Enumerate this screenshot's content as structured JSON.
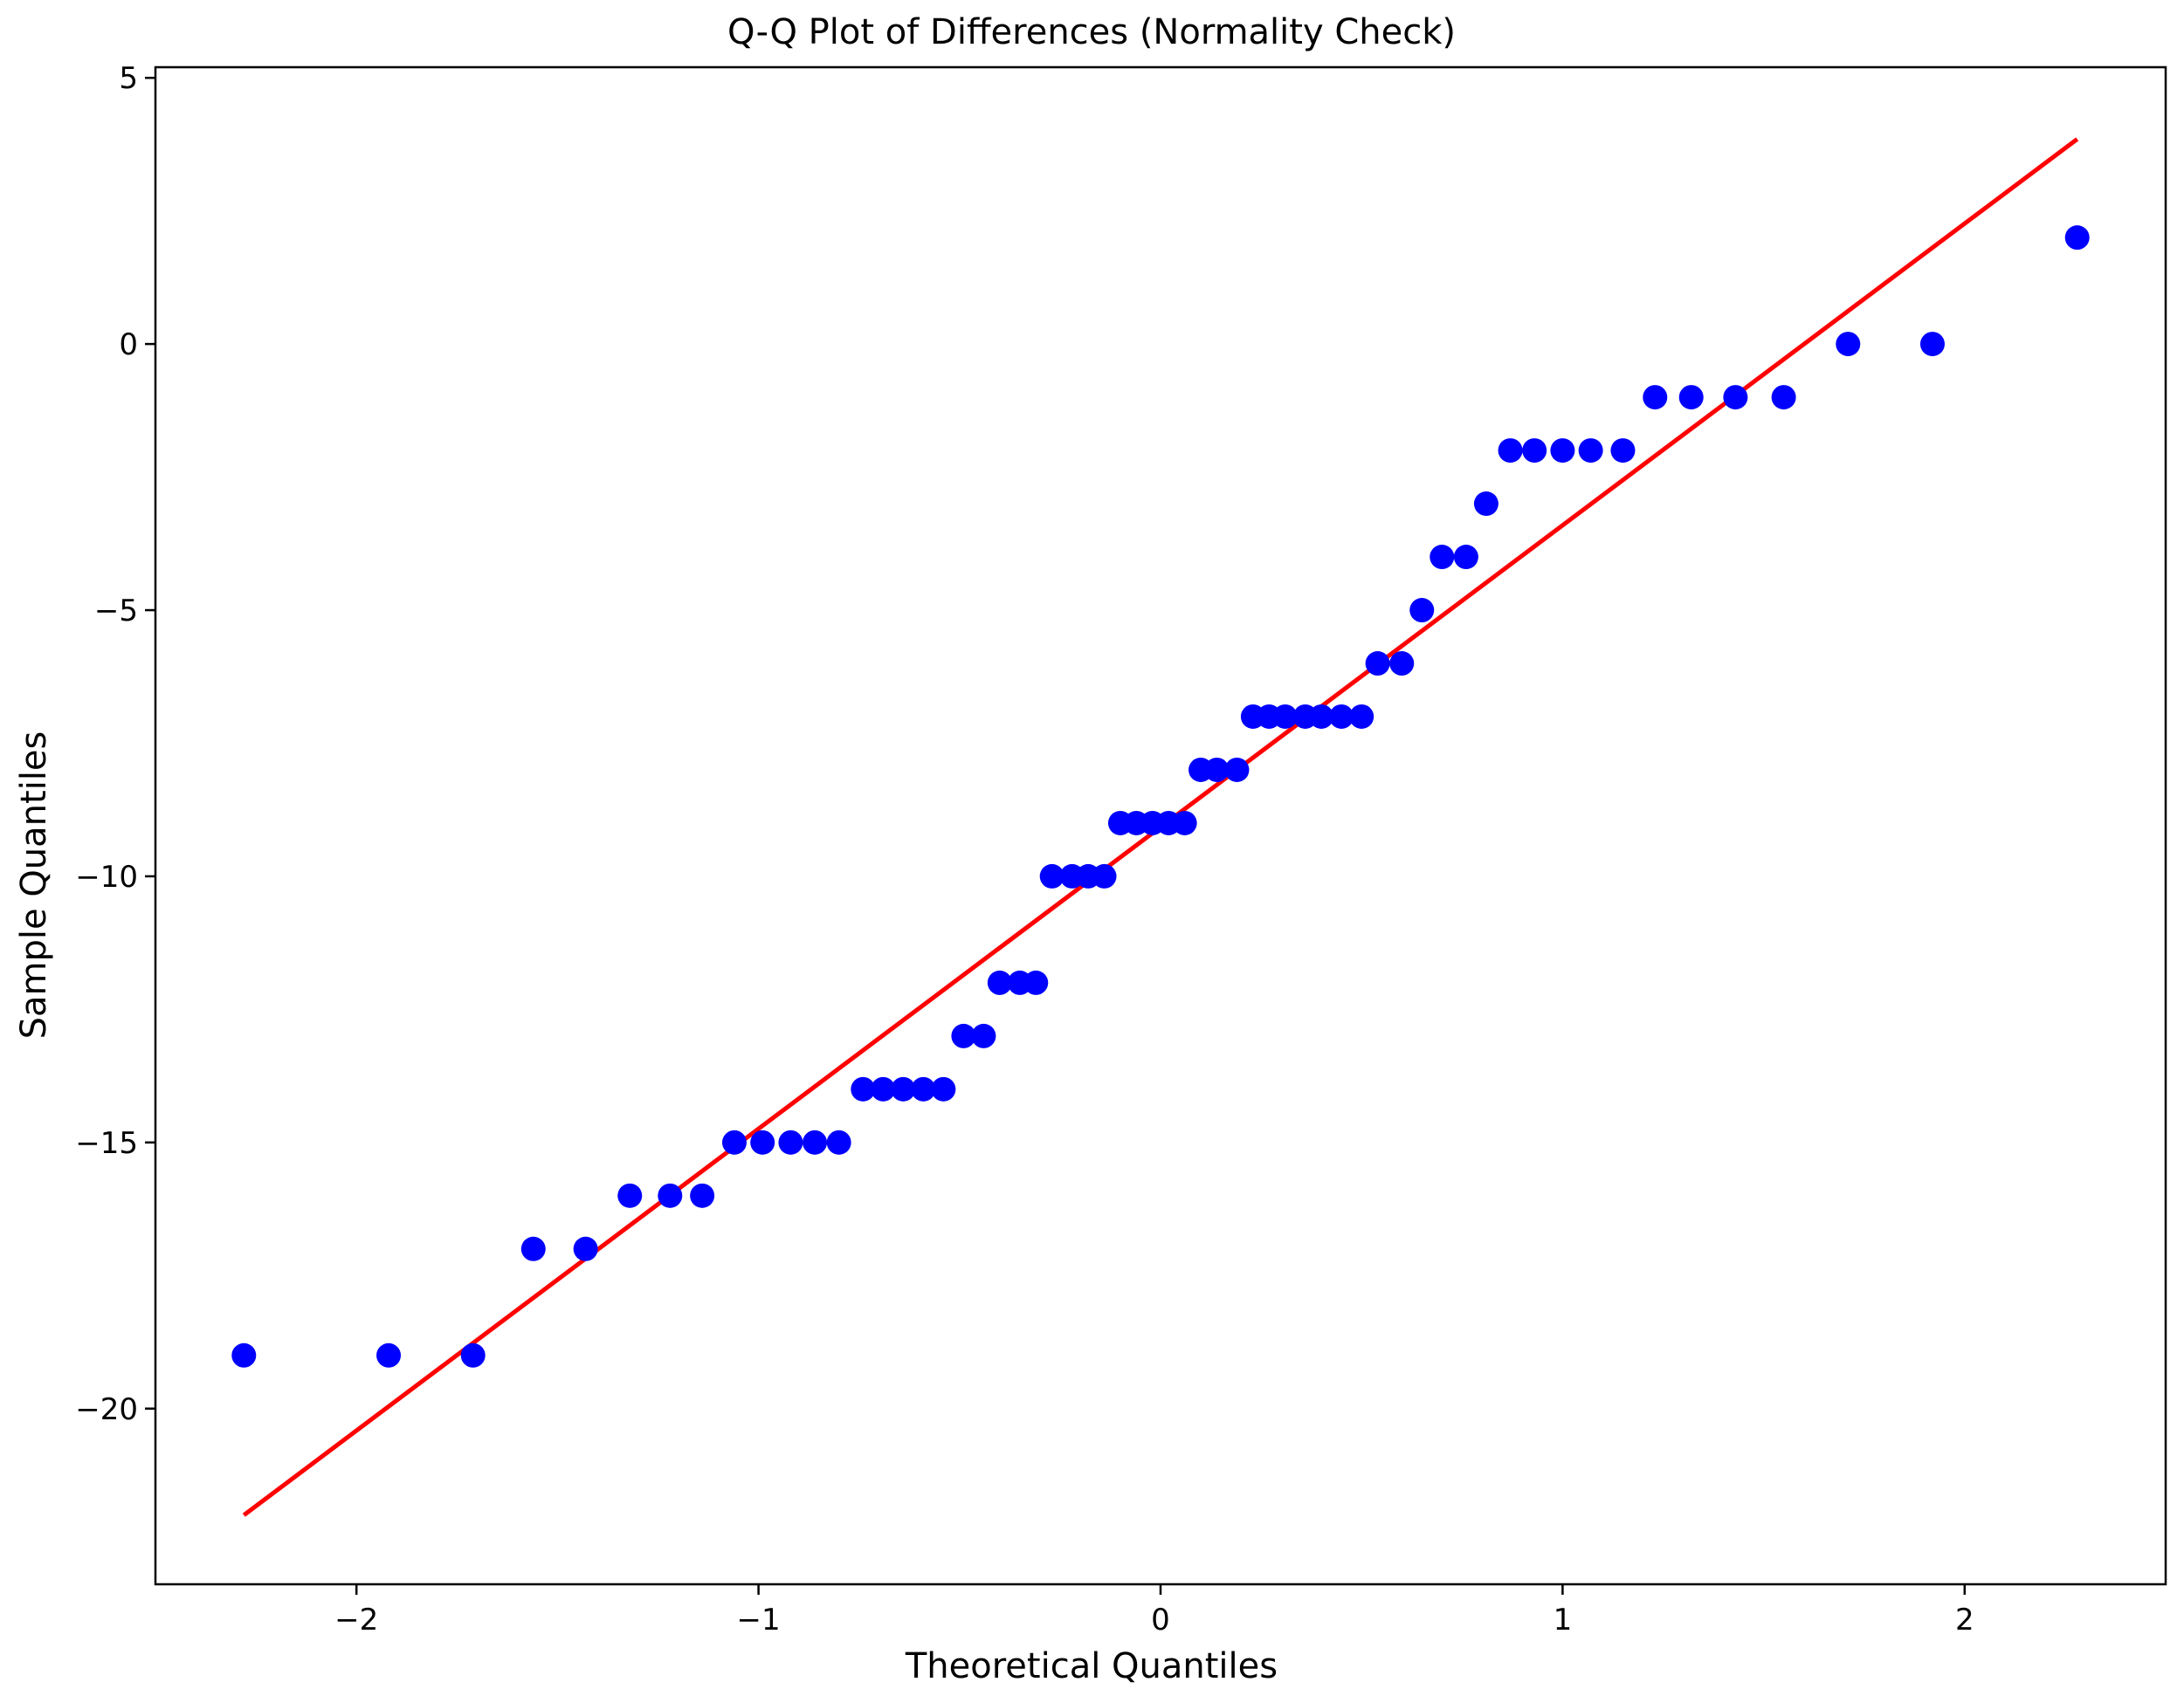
{
  "chart_data": {
    "type": "scatter",
    "title": "Q-Q Plot of Differences (Normality Check)",
    "xlabel": "Theoretical Quantiles",
    "ylabel": "Sample Quantiles",
    "xlim": [
      -2.5,
      2.5
    ],
    "ylim": [
      -23.3,
      5.2
    ],
    "x_ticks": [
      -2,
      -1,
      0,
      1,
      2
    ],
    "x_tick_labels": [
      "−2",
      "−1",
      "0",
      "1",
      "2"
    ],
    "y_ticks": [
      5,
      0,
      -5,
      -10,
      -15,
      -20
    ],
    "y_tick_labels": [
      "5",
      "0",
      "−5",
      "−10",
      "−15",
      "−20"
    ],
    "grid": false,
    "legend": "none",
    "series": [
      {
        "kind": "points",
        "color": "#0000ff",
        "points": [
          [
            -2.28,
            -19
          ],
          [
            -1.92,
            -19
          ],
          [
            -1.71,
            -19
          ],
          [
            -1.56,
            -17
          ],
          [
            -1.43,
            -17
          ],
          [
            -1.32,
            -16
          ],
          [
            -1.22,
            -16
          ],
          [
            -1.14,
            -16
          ],
          [
            -1.06,
            -15
          ],
          [
            -0.99,
            -15
          ],
          [
            -0.92,
            -15
          ],
          [
            -0.86,
            -15
          ],
          [
            -0.8,
            -15
          ],
          [
            -0.74,
            -14
          ],
          [
            -0.69,
            -14
          ],
          [
            -0.64,
            -14
          ],
          [
            -0.59,
            -14
          ],
          [
            -0.54,
            -14
          ],
          [
            -0.49,
            -13
          ],
          [
            -0.44,
            -13
          ],
          [
            -0.4,
            -12
          ],
          [
            -0.35,
            -12
          ],
          [
            -0.31,
            -12
          ],
          [
            -0.27,
            -10
          ],
          [
            -0.22,
            -10
          ],
          [
            -0.18,
            -10
          ],
          [
            -0.14,
            -10
          ],
          [
            -0.1,
            -9
          ],
          [
            -0.06,
            -9
          ],
          [
            -0.02,
            -9
          ],
          [
            0.02,
            -9
          ],
          [
            0.06,
            -9
          ],
          [
            0.1,
            -8
          ],
          [
            0.14,
            -8
          ],
          [
            0.19,
            -8
          ],
          [
            0.23,
            -7
          ],
          [
            0.27,
            -7
          ],
          [
            0.31,
            -7
          ],
          [
            0.36,
            -7
          ],
          [
            0.4,
            -7
          ],
          [
            0.45,
            -7
          ],
          [
            0.5,
            -7
          ],
          [
            0.54,
            -6
          ],
          [
            0.6,
            -6
          ],
          [
            0.65,
            -5
          ],
          [
            0.7,
            -4
          ],
          [
            0.76,
            -4
          ],
          [
            0.81,
            -3
          ],
          [
            0.87,
            -2
          ],
          [
            0.93,
            -2
          ],
          [
            1.0,
            -2
          ],
          [
            1.07,
            -2
          ],
          [
            1.15,
            -2
          ],
          [
            1.23,
            -1
          ],
          [
            1.32,
            -1
          ],
          [
            1.43,
            -1
          ],
          [
            1.55,
            -1
          ],
          [
            1.71,
            0
          ],
          [
            1.92,
            0
          ],
          [
            2.28,
            2
          ]
        ]
      },
      {
        "kind": "reference-line",
        "color": "#ff0000",
        "x": [
          -2.28,
          2.28
        ],
        "y": [
          -22.0,
          3.85
        ]
      }
    ]
  }
}
